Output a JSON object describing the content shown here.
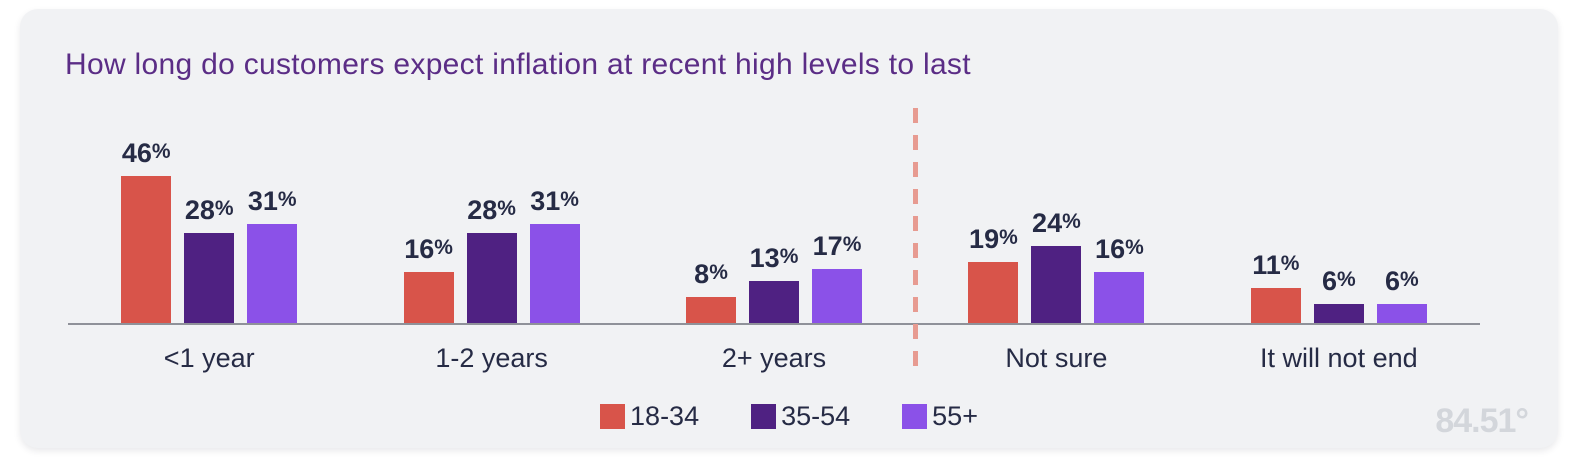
{
  "chart_data": {
    "type": "bar",
    "title": "How long do customers expect inflation at recent high levels to last",
    "categories": [
      "<1 year",
      "1-2 years",
      "2+ years",
      "Not sure",
      "It will not end"
    ],
    "series": [
      {
        "name": "18-34",
        "color": "#D8544A",
        "values": [
          46,
          16,
          8,
          19,
          11
        ]
      },
      {
        "name": "35-54",
        "color": "#4F2182",
        "values": [
          28,
          28,
          13,
          24,
          6
        ]
      },
      {
        "name": "55+",
        "color": "#8B51E8",
        "values": [
          31,
          31,
          17,
          16,
          6
        ]
      }
    ],
    "value_suffix": "%",
    "data_labels_shown": true,
    "xlabel": "",
    "ylabel": "",
    "ylim": [
      0,
      50
    ],
    "y_axis_visible": false,
    "grid": false,
    "legend_position": "bottom",
    "divider": {
      "after_category": "2+ years",
      "style": "dashed-vertical",
      "color": "#E79B91"
    }
  },
  "branding": {
    "logo_text": "84.51°"
  },
  "colors": {
    "card_background": "#F1F2F4",
    "page_background": "#FFFFFF",
    "title_text": "#5B2D86",
    "label_text": "#262B45",
    "axis_line": "#8F9199",
    "watermark": "#D3D6DB"
  }
}
